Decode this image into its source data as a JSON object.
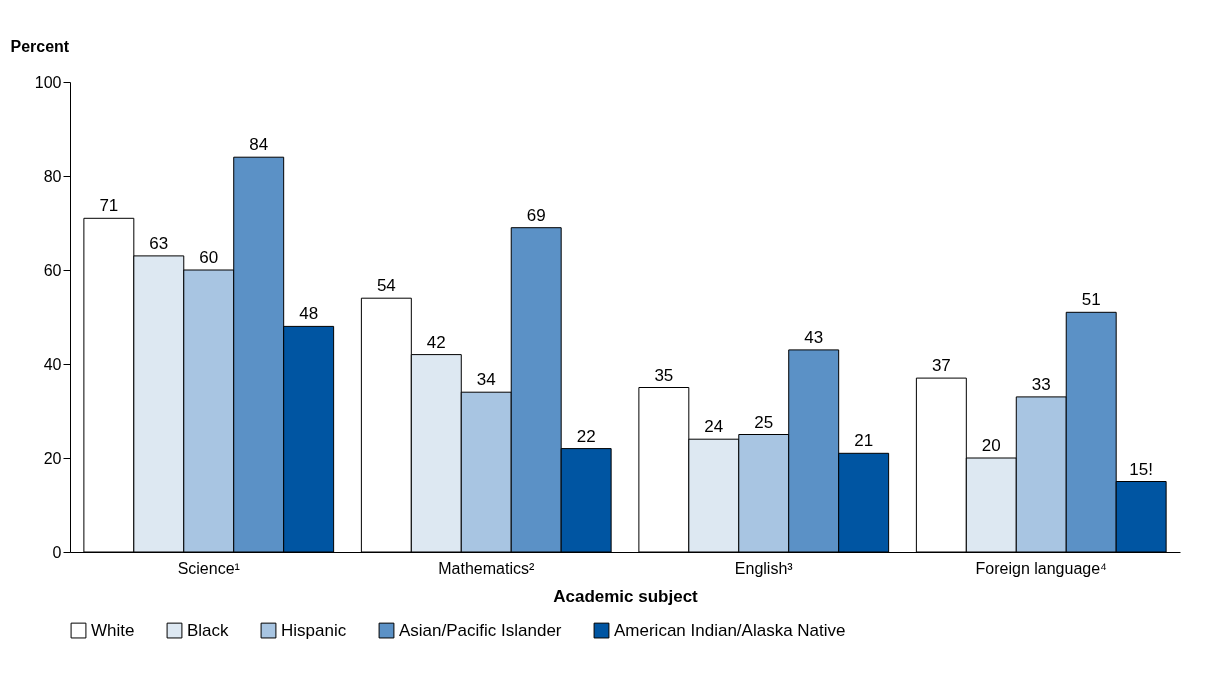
{
  "chart_data": {
    "type": "bar",
    "xlabel": "Academic subject",
    "ylabel": "Percent",
    "categories": [
      "Science¹",
      "Mathematics²",
      "English³",
      "Foreign language⁴"
    ],
    "series": [
      {
        "name": "White",
        "color": "#ffffff",
        "values": [
          71,
          54,
          35,
          37
        ],
        "value_labels": [
          "71",
          "54",
          "35",
          "37"
        ]
      },
      {
        "name": "Black",
        "color": "#dde8f2",
        "values": [
          63,
          42,
          24,
          20
        ],
        "value_labels": [
          "63",
          "42",
          "24",
          "20"
        ]
      },
      {
        "name": "Hispanic",
        "color": "#a8c5e2",
        "values": [
          60,
          34,
          25,
          33
        ],
        "value_labels": [
          "60",
          "34",
          "25",
          "33"
        ]
      },
      {
        "name": "Asian/Pacific Islander",
        "color": "#5b91c6",
        "values": [
          84,
          69,
          43,
          51
        ],
        "value_labels": [
          "84",
          "69",
          "43",
          "51"
        ]
      },
      {
        "name": "American Indian/Alaska Native",
        "color": "#0055a2",
        "values": [
          48,
          22,
          21,
          15
        ],
        "value_labels": [
          "48",
          "22",
          "21",
          "15!"
        ]
      }
    ],
    "ylim": [
      0,
      100
    ],
    "yticks": [
      0,
      20,
      40,
      60,
      80,
      100
    ],
    "grid": false,
    "legend": "bottom"
  }
}
